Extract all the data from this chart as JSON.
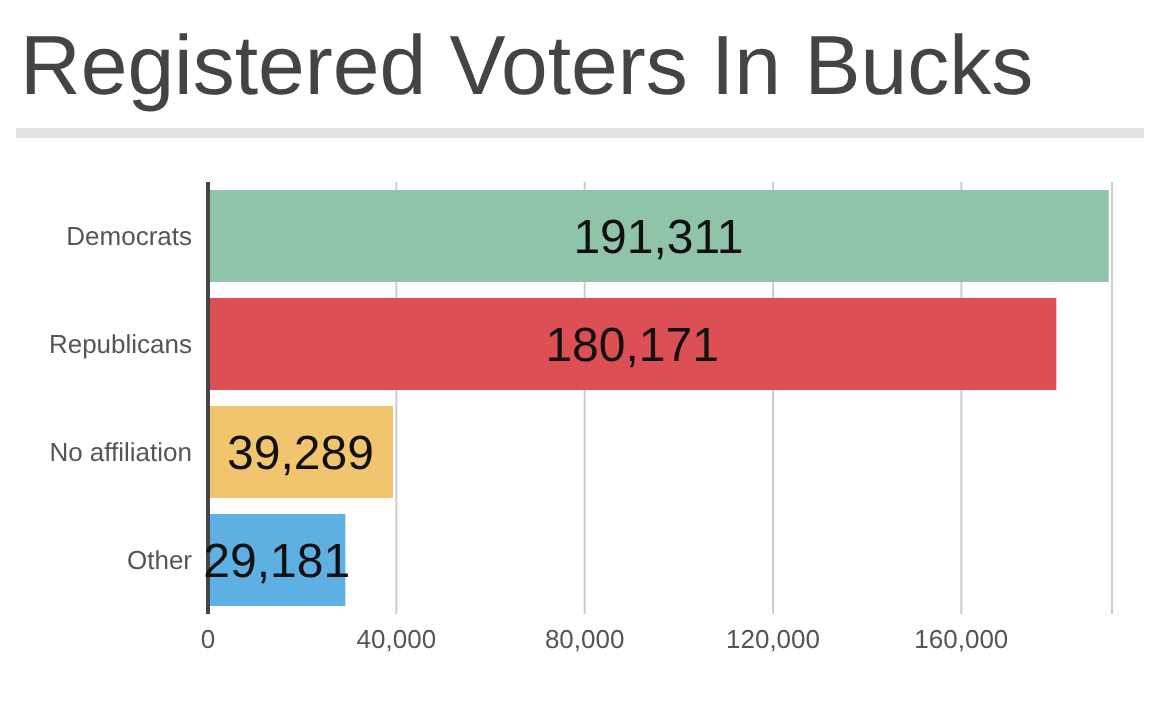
{
  "chart_data": {
    "type": "bar",
    "orientation": "horizontal",
    "title": "Registered Voters In Bucks",
    "categories": [
      "Democrats",
      "Republicans",
      "No affiliation",
      "Other"
    ],
    "values": [
      191311,
      180171,
      39289,
      29181
    ],
    "value_labels": [
      "191,311",
      "180,171",
      "39,289",
      "29,181"
    ],
    "colors": [
      "#8fc4a8",
      "#dc4f55",
      "#f1c56e",
      "#5eb0e2"
    ],
    "xlim": [
      0,
      192000
    ],
    "xticks": [
      0,
      {
        "value": 40000,
        "label": "40,000"
      },
      {
        "value": 80000,
        "label": "80,000"
      },
      {
        "value": 120000,
        "label": "120,000"
      },
      {
        "value": 160000,
        "label": "160,000"
      }
    ],
    "grid": "x"
  }
}
